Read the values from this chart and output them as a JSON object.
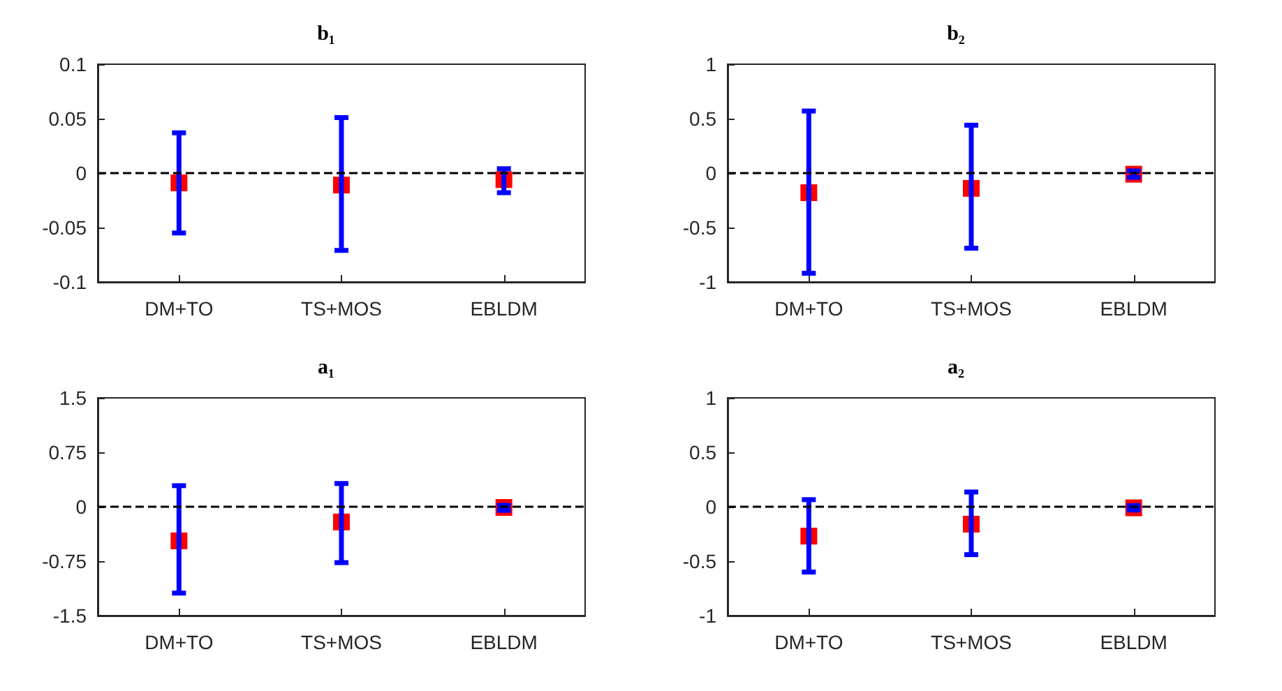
{
  "chart_data": [
    {
      "type": "scatter",
      "title": "b₁",
      "categories": [
        "DM+TO",
        "TS+MOS",
        "EBLDM"
      ],
      "marker": "square",
      "grid": false,
      "ylim": [
        -0.1,
        0.1
      ],
      "yticks": [
        -0.1,
        -0.05,
        0,
        0.05,
        0.1
      ],
      "series": [
        {
          "color": "#ff0000",
          "values": [
            -0.009,
            -0.011,
            -0.006
          ],
          "errors": [
            [
              -0.055,
              0.037
            ],
            [
              -0.071,
              0.051
            ],
            [
              -0.018,
              0.004
            ]
          ]
        }
      ],
      "ref_lines": [
        {
          "axis": "y",
          "value": 0,
          "color": "#000000",
          "line_style": "dashed"
        }
      ]
    },
    {
      "type": "scatter",
      "title": "b₂",
      "categories": [
        "DM+TO",
        "TS+MOS",
        "EBLDM"
      ],
      "marker": "square",
      "grid": false,
      "ylim": [
        -1,
        1
      ],
      "yticks": [
        -1,
        -0.5,
        0,
        0.5,
        1
      ],
      "series": [
        {
          "color": "#ff0000",
          "values": [
            -0.18,
            -0.14,
            -0.01
          ],
          "errors": [
            [
              -0.92,
              0.57
            ],
            [
              -0.69,
              0.44
            ],
            [
              -0.04,
              0.02
            ]
          ]
        }
      ],
      "ref_lines": [
        {
          "axis": "y",
          "value": 0,
          "color": "#000000",
          "line_style": "dashed"
        }
      ]
    },
    {
      "type": "scatter",
      "title": "a₁",
      "categories": [
        "DM+TO",
        "TS+MOS",
        "EBLDM"
      ],
      "marker": "square",
      "grid": false,
      "ylim": [
        -1.5,
        1.5
      ],
      "yticks": [
        -1.5,
        -0.75,
        0,
        0.75,
        1.5
      ],
      "series": [
        {
          "color": "#ff0000",
          "values": [
            -0.47,
            -0.21,
            -0.01
          ],
          "errors": [
            [
              -1.19,
              0.29
            ],
            [
              -0.77,
              0.32
            ],
            [
              -0.05,
              0.02
            ]
          ]
        }
      ],
      "ref_lines": [
        {
          "axis": "y",
          "value": 0,
          "color": "#000000",
          "line_style": "dashed"
        }
      ]
    },
    {
      "type": "scatter",
      "title": "a₂",
      "categories": [
        "DM+TO",
        "TS+MOS",
        "EBLDM"
      ],
      "marker": "square",
      "grid": false,
      "ylim": [
        -1,
        1
      ],
      "yticks": [
        -1,
        -0.5,
        0,
        0.5,
        1
      ],
      "series": [
        {
          "color": "#ff0000",
          "values": [
            -0.27,
            -0.16,
            -0.01
          ],
          "errors": [
            [
              -0.6,
              0.065
            ],
            [
              -0.44,
              0.135
            ],
            [
              -0.03,
              0.01
            ]
          ]
        }
      ],
      "ref_lines": [
        {
          "axis": "y",
          "value": 0,
          "color": "#000000",
          "line_style": "dashed"
        }
      ]
    }
  ]
}
